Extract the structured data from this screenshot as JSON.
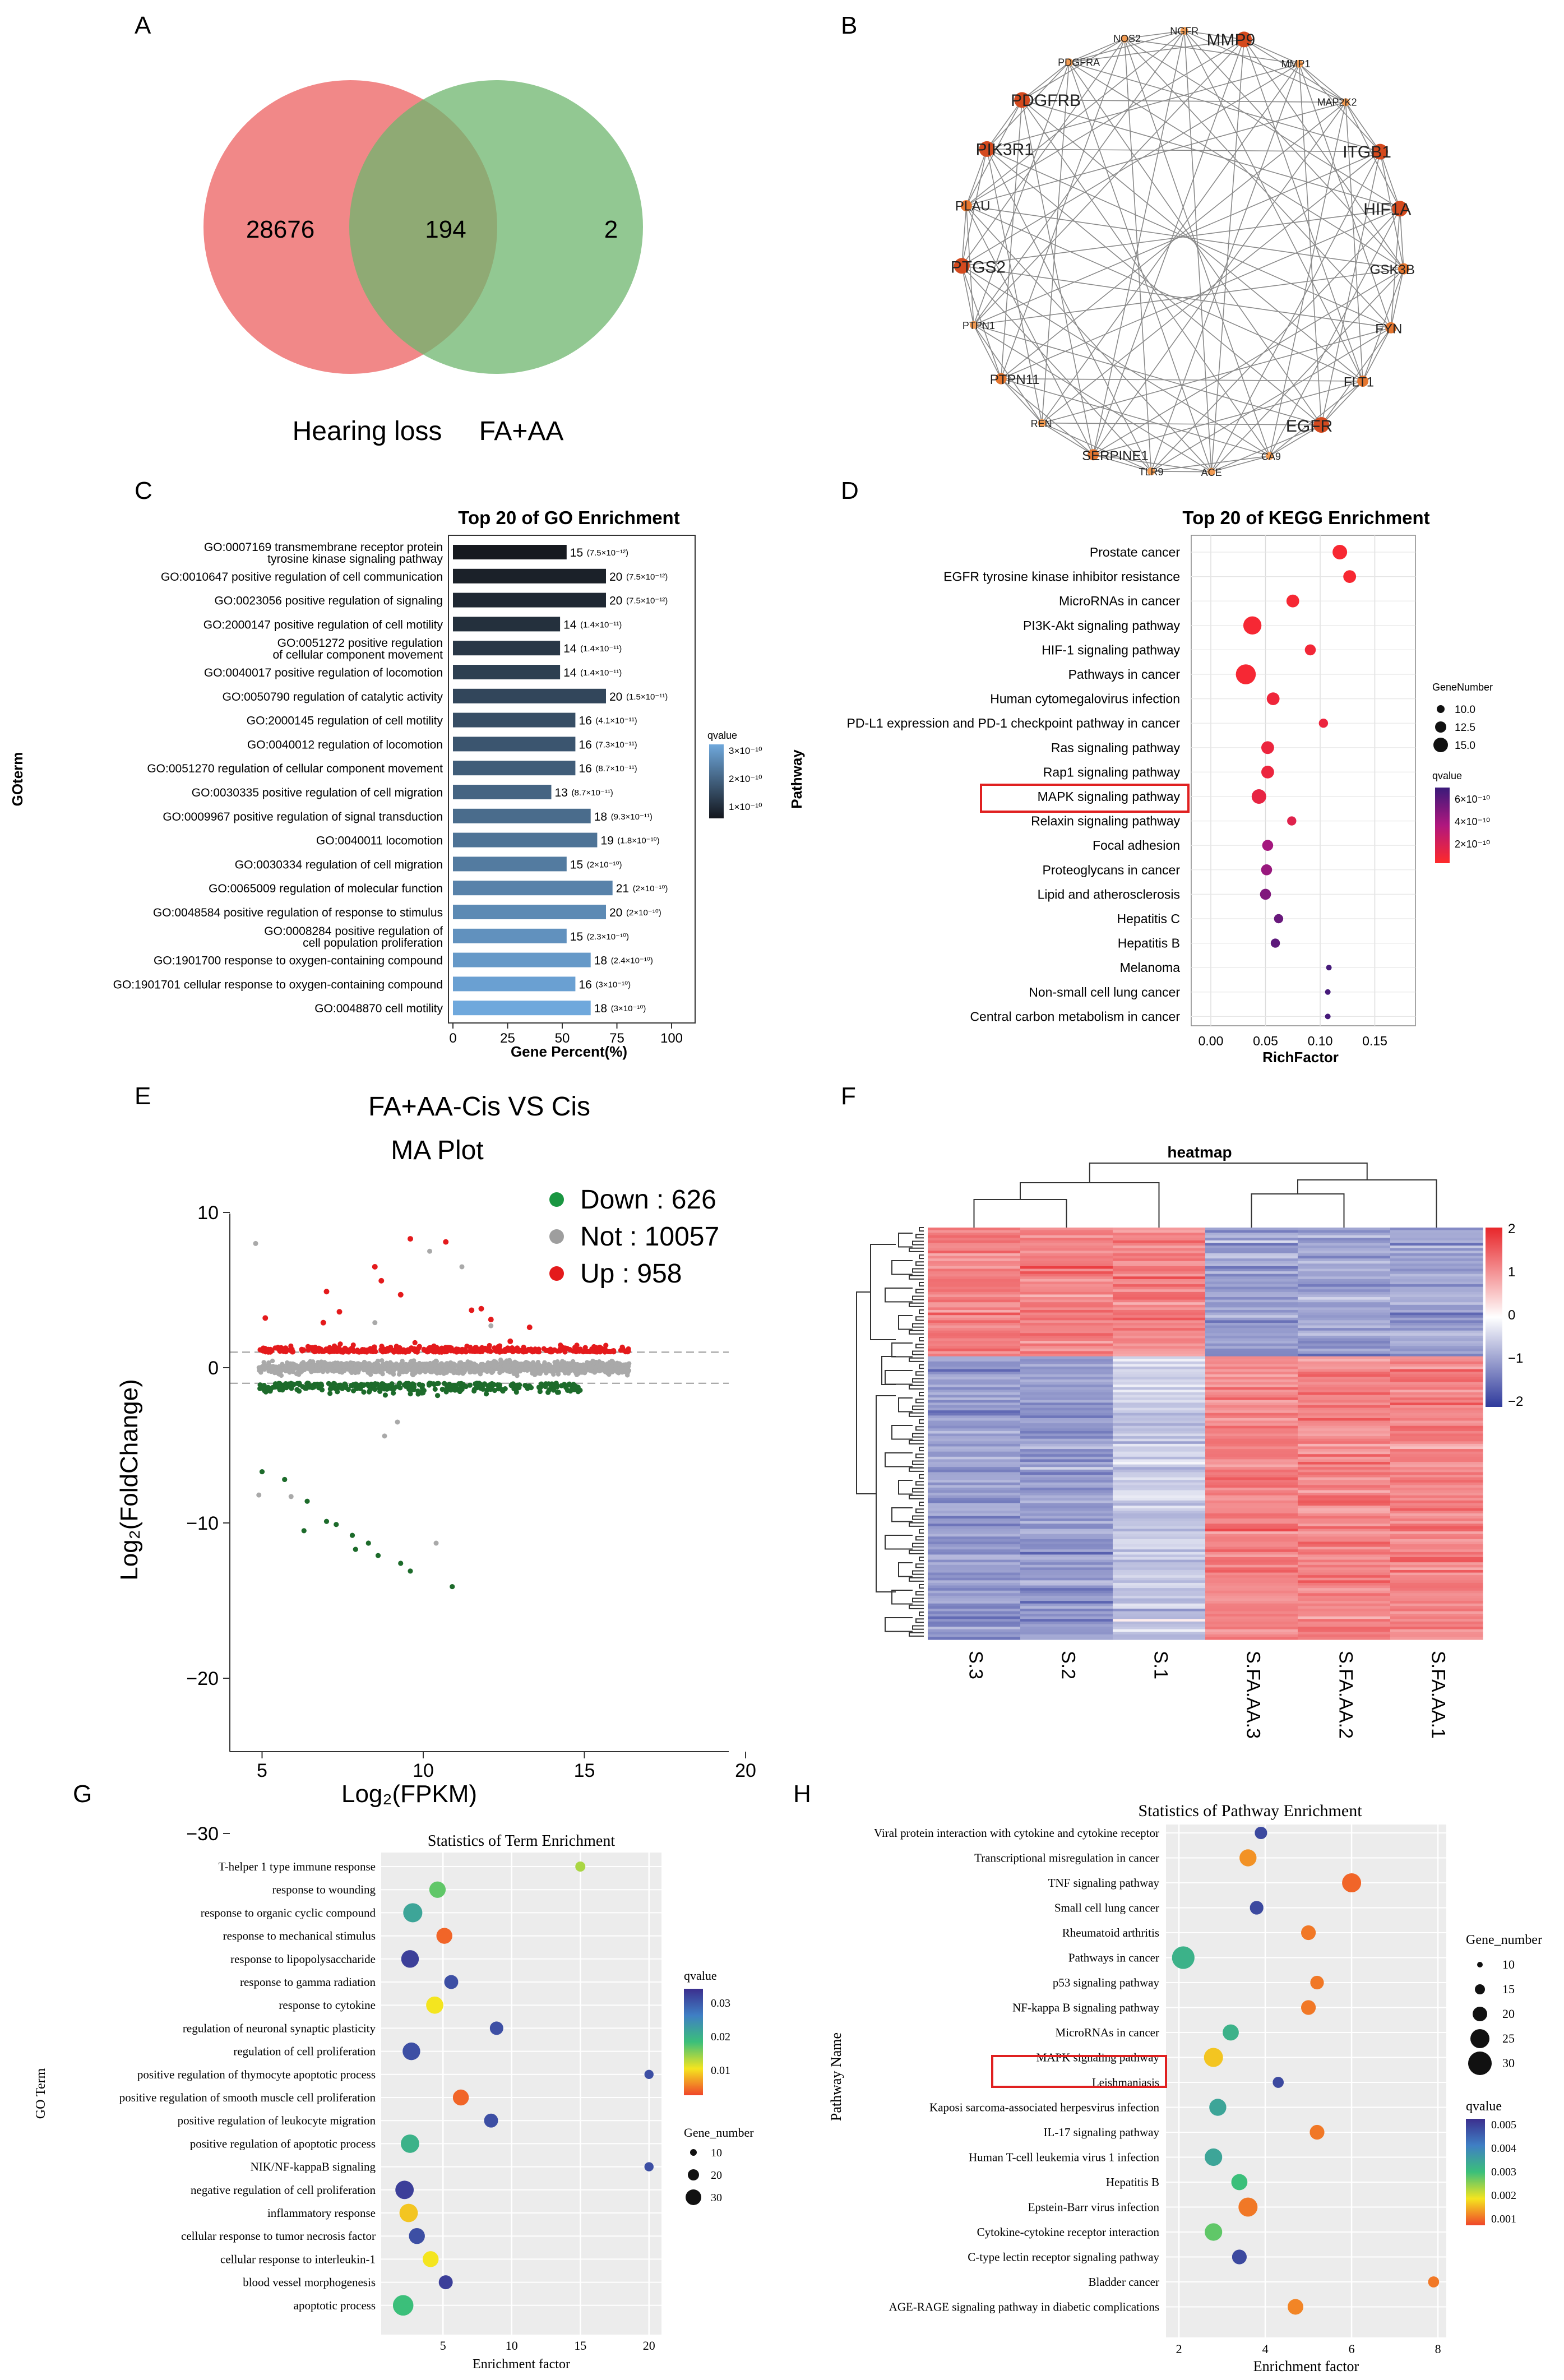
{
  "panels": {
    "A": {
      "letter": "A",
      "venn": {
        "left_only": "28676",
        "overlap": "194",
        "right_only": "2",
        "left_label": "Hearing loss",
        "right_label": "FA+AA",
        "left_color": "#ef7b7b",
        "right_color": "#7cbc7c"
      }
    },
    "B": {
      "letter": "B",
      "nodes": [
        {
          "label": "MMP9",
          "size": "l"
        },
        {
          "label": "MMP1",
          "size": "s"
        },
        {
          "label": "MAP2K2",
          "size": "s"
        },
        {
          "label": "ITGB1",
          "size": "l"
        },
        {
          "label": "HIF1A",
          "size": "l"
        },
        {
          "label": "GSK3B",
          "size": "m"
        },
        {
          "label": "FYN",
          "size": "m"
        },
        {
          "label": "FLT1",
          "size": "m"
        },
        {
          "label": "EGFR",
          "size": "l"
        },
        {
          "label": "CA9",
          "size": "s"
        },
        {
          "label": "ACE",
          "size": "s"
        },
        {
          "label": "TLR9",
          "size": "s"
        },
        {
          "label": "SERPINE1",
          "size": "m"
        },
        {
          "label": "REN",
          "size": "s"
        },
        {
          "label": "PTPN11",
          "size": "m"
        },
        {
          "label": "PTPN1",
          "size": "s"
        },
        {
          "label": "PTGS2",
          "size": "l"
        },
        {
          "label": "PLAU",
          "size": "m"
        },
        {
          "label": "PIK3R1",
          "size": "l"
        },
        {
          "label": "PDGFRB",
          "size": "l"
        },
        {
          "label": "PDGFRA",
          "size": "s"
        },
        {
          "label": "NOS2",
          "size": "s"
        },
        {
          "label": "NGFR",
          "size": "s"
        }
      ]
    },
    "C": {
      "letter": "C",
      "title": "Top 20 of GO Enrichment",
      "ylabel": "GOterm",
      "xlabel": "Gene Percent(%)",
      "xticks": [
        "0",
        "25",
        "50",
        "75",
        "100"
      ],
      "legend_title": "qvalue",
      "legend_ticks": [
        "3×10⁻¹⁰",
        "2×10⁻¹⁰",
        "1×10⁻¹⁰"
      ],
      "terms": [
        {
          "l1": "GO:0007169 transmembrane receptor protein",
          "l2": "tyrosine kinase signaling pathway",
          "count": "15",
          "q": "(7.5×10⁻¹²)",
          "pct": 52
        },
        {
          "l1": "GO:0010647 positive regulation of cell communication",
          "l2": "",
          "count": "20",
          "q": "(7.5×10⁻¹²)",
          "pct": 70
        },
        {
          "l1": "GO:0023056 positive regulation of signaling",
          "l2": "",
          "count": "20",
          "q": "(7.5×10⁻¹²)",
          "pct": 70
        },
        {
          "l1": "GO:2000147 positive regulation of cell motility",
          "l2": "",
          "count": "14",
          "q": "(1.4×10⁻¹¹)",
          "pct": 49
        },
        {
          "l1": "GO:0051272 positive regulation",
          "l2": "of cellular component movement",
          "count": "14",
          "q": "(1.4×10⁻¹¹)",
          "pct": 49
        },
        {
          "l1": "GO:0040017 positive regulation of locomotion",
          "l2": "",
          "count": "14",
          "q": "(1.4×10⁻¹¹)",
          "pct": 49
        },
        {
          "l1": "GO:0050790 regulation of catalytic activity",
          "l2": "",
          "count": "20",
          "q": "(1.5×10⁻¹¹)",
          "pct": 70
        },
        {
          "l1": "GO:2000145 regulation of cell motility",
          "l2": "",
          "count": "16",
          "q": "(4.1×10⁻¹¹)",
          "pct": 56
        },
        {
          "l1": "GO:0040012 regulation of locomotion",
          "l2": "",
          "count": "16",
          "q": "(7.3×10⁻¹¹)",
          "pct": 56
        },
        {
          "l1": "GO:0051270 regulation of cellular component movement",
          "l2": "",
          "count": "16",
          "q": "(8.7×10⁻¹¹)",
          "pct": 56
        },
        {
          "l1": "GO:0030335 positive regulation of cell migration",
          "l2": "",
          "count": "13",
          "q": "(8.7×10⁻¹¹)",
          "pct": 45
        },
        {
          "l1": "GO:0009967 positive regulation of signal transduction",
          "l2": "",
          "count": "18",
          "q": "(9.3×10⁻¹¹)",
          "pct": 63
        },
        {
          "l1": "GO:0040011 locomotion",
          "l2": "",
          "count": "19",
          "q": "(1.8×10⁻¹⁰)",
          "pct": 66
        },
        {
          "l1": "GO:0030334 regulation of cell migration",
          "l2": "",
          "count": "15",
          "q": "(2×10⁻¹⁰)",
          "pct": 52
        },
        {
          "l1": "GO:0065009 regulation of molecular function",
          "l2": "",
          "count": "21",
          "q": "(2×10⁻¹⁰)",
          "pct": 73
        },
        {
          "l1": "GO:0048584 positive regulation of response to stimulus",
          "l2": "",
          "count": "20",
          "q": "(2×10⁻¹⁰)",
          "pct": 70
        },
        {
          "l1": "GO:0008284 positive regulation of",
          "l2": "cell population proliferation",
          "count": "15",
          "q": "(2.3×10⁻¹⁰)",
          "pct": 52
        },
        {
          "l1": "GO:1901700 response to oxygen-containing compound",
          "l2": "",
          "count": "18",
          "q": "(2.4×10⁻¹⁰)",
          "pct": 63
        },
        {
          "l1": "GO:1901701 cellular response to oxygen-containing compound",
          "l2": "",
          "count": "16",
          "q": "(3×10⁻¹⁰)",
          "pct": 56
        },
        {
          "l1": "GO:0048870 cell motility",
          "l2": "",
          "count": "18",
          "q": "(3×10⁻¹⁰)",
          "pct": 63
        }
      ]
    },
    "D": {
      "letter": "D",
      "title": "Top 20 of KEGG Enrichment",
      "ylabel": "Pathway",
      "xlabel": "RichFactor",
      "xticks": [
        "0.00",
        "0.05",
        "0.10",
        "0.15"
      ],
      "size_legend_title": "GeneNumber",
      "size_legend": [
        "10.0",
        "12.5",
        "15.0"
      ],
      "color_legend_title": "qvalue",
      "color_legend": [
        "6×10⁻¹⁰",
        "4×10⁻¹⁰",
        "2×10⁻¹⁰"
      ],
      "highlight": "MAPK signaling pathway",
      "pathways": [
        {
          "name": "Prostate cancer",
          "rf": 0.118,
          "n": 13,
          "c": 0.05
        },
        {
          "name": "EGFR tyrosine kinase inhibitor resistance",
          "rf": 0.127,
          "n": 12,
          "c": 0.05
        },
        {
          "name": "MicroRNAs in cancer",
          "rf": 0.075,
          "n": 12,
          "c": 0.06
        },
        {
          "name": "PI3K-Akt signaling pathway",
          "rf": 0.038,
          "n": 15,
          "c": 0.06
        },
        {
          "name": "HIF-1 signaling pathway",
          "rf": 0.091,
          "n": 11,
          "c": 0.08
        },
        {
          "name": "Pathways in cancer",
          "rf": 0.032,
          "n": 16,
          "c": 0.06
        },
        {
          "name": "Human cytomegalovirus infection",
          "rf": 0.057,
          "n": 12,
          "c": 0.1
        },
        {
          "name": "PD-L1 expression and PD-1 checkpoint pathway in cancer",
          "rf": 0.103,
          "n": 10,
          "c": 0.12
        },
        {
          "name": "Ras signaling pathway",
          "rf": 0.052,
          "n": 12,
          "c": 0.12
        },
        {
          "name": "Rap1 signaling pathway",
          "rf": 0.052,
          "n": 12,
          "c": 0.12
        },
        {
          "name": "MAPK signaling pathway",
          "rf": 0.044,
          "n": 13,
          "c": 0.15
        },
        {
          "name": "Relaxin signaling pathway",
          "rf": 0.074,
          "n": 10,
          "c": 0.2
        },
        {
          "name": "Focal adhesion",
          "rf": 0.052,
          "n": 11,
          "c": 0.55
        },
        {
          "name": "Proteoglycans in cancer",
          "rf": 0.051,
          "n": 11,
          "c": 0.6
        },
        {
          "name": "Lipid and atherosclerosis",
          "rf": 0.05,
          "n": 11,
          "c": 0.7
        },
        {
          "name": "Hepatitis C",
          "rf": 0.062,
          "n": 10,
          "c": 0.8
        },
        {
          "name": "Hepatitis B",
          "rf": 0.059,
          "n": 10,
          "c": 0.85
        },
        {
          "name": "Melanoma",
          "rf": 0.108,
          "n": 8,
          "c": 0.95
        },
        {
          "name": "Non-small cell lung cancer",
          "rf": 0.107,
          "n": 8,
          "c": 0.95
        },
        {
          "name": "Central carbon metabolism in cancer",
          "rf": 0.107,
          "n": 8,
          "c": 0.95
        }
      ]
    },
    "E": {
      "letter": "E",
      "title1": "FA+AA-Cis VS Cis",
      "title2": "MA Plot",
      "legend": [
        {
          "label": "Down : 626",
          "color": "#1a9641"
        },
        {
          "label": "Not : 10057",
          "color": "#9e9e9e"
        },
        {
          "label": "Up : 958",
          "color": "#e41a1c"
        }
      ],
      "xlabel": "Log₂(FPKM)",
      "ylabel": "Log₂(FoldChange)",
      "xticks": [
        "5",
        "10",
        "15",
        "20"
      ],
      "yticks": [
        "10",
        "0",
        "−10",
        "−20",
        "−30"
      ]
    },
    "F": {
      "letter": "F",
      "title": "heatmap",
      "samples": [
        "S.3",
        "S.2",
        "S.1",
        "S.FA.AA.3",
        "S.FA.AA.2",
        "S.FA.AA.1"
      ],
      "scale": [
        "2",
        "1",
        "0",
        "−1",
        "−2"
      ]
    },
    "G": {
      "letter": "G",
      "title": "Statistics of Term Enrichment",
      "ylabel": "GO Term",
      "xlabel": "Enrichment factor",
      "xticks": [
        "5",
        "10",
        "15",
        "20"
      ],
      "color_legend_title": "qvalue",
      "color_legend": [
        "0.03",
        "0.02",
        "0.01"
      ],
      "size_legend_title": "Gene_number",
      "size_legend": [
        "10",
        "20",
        "30"
      ],
      "terms": [
        {
          "name": "T-helper 1 type immune response",
          "ef": 15,
          "n": 4,
          "c": 0.35
        },
        {
          "name": "response to wounding",
          "ef": 4.6,
          "n": 15,
          "c": 0.45
        },
        {
          "name": "response to organic cyclic compound",
          "ef": 2.8,
          "n": 22,
          "c": 0.6
        },
        {
          "name": "response to mechanical stimulus",
          "ef": 5.1,
          "n": 14,
          "c": 0.05
        },
        {
          "name": "response to lipopolysaccharide",
          "ef": 2.6,
          "n": 18,
          "c": 0.95
        },
        {
          "name": "response to gamma radiation",
          "ef": 5.6,
          "n": 10,
          "c": 0.9
        },
        {
          "name": "response to cytokine",
          "ef": 4.4,
          "n": 17,
          "c": 0.25
        },
        {
          "name": "regulation of neuronal synaptic plasticity",
          "ef": 8.9,
          "n": 9,
          "c": 0.9
        },
        {
          "name": "regulation of cell proliferation",
          "ef": 2.7,
          "n": 18,
          "c": 0.9
        },
        {
          "name": "positive regulation of thymocyte apoptotic process",
          "ef": 20,
          "n": 3,
          "c": 0.9
        },
        {
          "name": "positive regulation of smooth muscle cell proliferation",
          "ef": 6.3,
          "n": 14,
          "c": 0.05
        },
        {
          "name": "positive regulation of leukocyte migration",
          "ef": 8.5,
          "n": 10,
          "c": 0.9
        },
        {
          "name": "positive regulation of apoptotic process",
          "ef": 2.6,
          "n": 20,
          "c": 0.55
        },
        {
          "name": "NIK/NF-kappaB signaling",
          "ef": 20,
          "n": 3,
          "c": 0.9
        },
        {
          "name": "negative regulation of cell proliferation",
          "ef": 2.2,
          "n": 20,
          "c": 0.95
        },
        {
          "name": "inflammatory response",
          "ef": 2.5,
          "n": 20,
          "c": 0.2
        },
        {
          "name": "cellular response to tumor necrosis factor",
          "ef": 3.1,
          "n": 14,
          "c": 0.9
        },
        {
          "name": "cellular response to interleukin-1",
          "ef": 4.1,
          "n": 14,
          "c": 0.25
        },
        {
          "name": "blood vessel morphogenesis",
          "ef": 5.2,
          "n": 10,
          "c": 0.95
        },
        {
          "name": "apoptotic process",
          "ef": 2.1,
          "n": 26,
          "c": 0.5
        }
      ]
    },
    "H": {
      "letter": "H",
      "title": "Statistics of Pathway Enrichment",
      "ylabel": "Pathway Name",
      "xlabel": "Enrichment factor",
      "xticks": [
        "2",
        "4",
        "6",
        "8"
      ],
      "size_legend_title": "Gene_number",
      "size_legend": [
        "10",
        "15",
        "20",
        "25",
        "30"
      ],
      "color_legend_title": "qvalue",
      "color_legend": [
        "0.005",
        "0.004",
        "0.003",
        "0.002",
        "0.001"
      ],
      "highlight": "MAPK signaling pathway",
      "pathways": [
        {
          "name": "Viral protein interaction with cytokine and cytokine receptor",
          "ef": 3.9,
          "n": 8,
          "c": 0.92
        },
        {
          "name": "Transcriptional misregulation in cancer",
          "ef": 3.6,
          "n": 17,
          "c": 0.12
        },
        {
          "name": "TNF signaling pathway",
          "ef": 6.0,
          "n": 22,
          "c": 0.05
        },
        {
          "name": "Small cell lung cancer",
          "ef": 3.8,
          "n": 10,
          "c": 0.92
        },
        {
          "name": "Rheumatoid arthritis",
          "ef": 5.0,
          "n": 12,
          "c": 0.08
        },
        {
          "name": "Pathways in cancer",
          "ef": 2.1,
          "n": 32,
          "c": 0.55
        },
        {
          "name": "p53 signaling pathway",
          "ef": 5.2,
          "n": 10,
          "c": 0.08
        },
        {
          "name": "NF-kappa B signaling pathway",
          "ef": 5.0,
          "n": 12,
          "c": 0.08
        },
        {
          "name": "MicroRNAs in cancer",
          "ef": 3.2,
          "n": 15,
          "c": 0.55
        },
        {
          "name": "MAPK signaling pathway",
          "ef": 2.8,
          "n": 22,
          "c": 0.2
        },
        {
          "name": "Leishmaniasis",
          "ef": 4.3,
          "n": 6,
          "c": 0.92
        },
        {
          "name": "Kaposi sarcoma-associated herpesvirus infection",
          "ef": 2.9,
          "n": 17,
          "c": 0.6
        },
        {
          "name": "IL-17 signaling pathway",
          "ef": 5.2,
          "n": 12,
          "c": 0.08
        },
        {
          "name": "Human T-cell leukemia virus 1 infection",
          "ef": 2.8,
          "n": 18,
          "c": 0.6
        },
        {
          "name": "Hepatitis B",
          "ef": 3.4,
          "n": 15,
          "c": 0.5
        },
        {
          "name": "Epstein-Barr virus infection",
          "ef": 3.6,
          "n": 22,
          "c": 0.08
        },
        {
          "name": "Cytokine-cytokine receptor interaction",
          "ef": 2.8,
          "n": 18,
          "c": 0.45
        },
        {
          "name": "C-type lectin receptor signaling pathway",
          "ef": 3.4,
          "n": 12,
          "c": 0.92
        },
        {
          "name": "Bladder cancer",
          "ef": 7.9,
          "n": 6,
          "c": 0.08
        },
        {
          "name": "AGE-RAGE signaling pathway in diabetic complications",
          "ef": 4.7,
          "n": 14,
          "c": 0.1
        }
      ]
    }
  }
}
